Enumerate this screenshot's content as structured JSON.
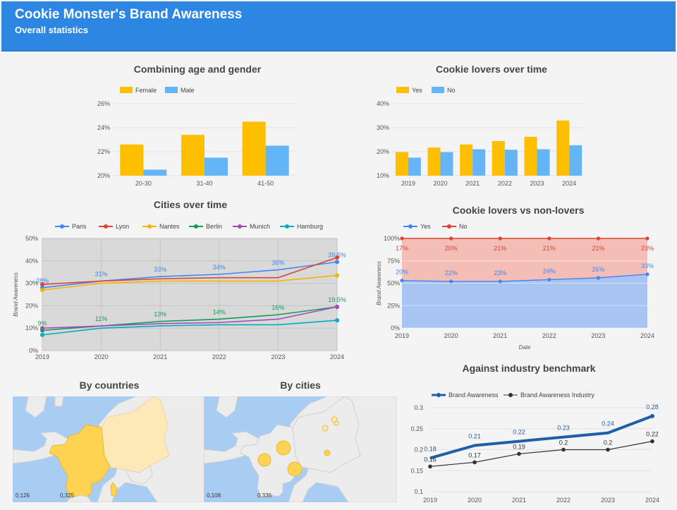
{
  "header": {
    "title": "Cookie Monster's Brand Awareness",
    "subtitle": "Overall statistics"
  },
  "panels": {
    "age_gender": "Combining age and gender",
    "lovers_time": "Cookie lovers over time",
    "cities_time": "Cities over time",
    "lovers_vs": "Cookie lovers vs non-lovers",
    "benchmark": "Against industry benchmark",
    "by_countries": "By countries",
    "by_cities": "By cities"
  },
  "maps": {
    "countries_min": "0,126",
    "countries_max": "0,325",
    "cities_min": "0,108",
    "cities_max": "0,336"
  },
  "colors": {
    "yellow": "#fdbf00",
    "lightblue": "#64b5f6",
    "paris": "#4285f4",
    "lyon": "#db4437",
    "nantes": "#f4b400",
    "berlin": "#0f9d58",
    "munich": "#ab47bc",
    "hamburg": "#00acc1",
    "benchmark": "#1f5fa8",
    "industry": "#333333"
  },
  "chart_data": [
    {
      "id": "age_gender",
      "type": "bar",
      "categories": [
        "20-30",
        "31-40",
        "41-50"
      ],
      "series": [
        {
          "name": "Female",
          "values": [
            22.6,
            23.4,
            24.5
          ]
        },
        {
          "name": "Male",
          "values": [
            20.5,
            21.5,
            22.5
          ]
        }
      ],
      "ylim": [
        20,
        26
      ],
      "yticks": [
        "20%",
        "22%",
        "24%",
        "26%"
      ],
      "ytick_values": [
        20,
        22,
        24,
        26
      ],
      "legend": "top-left"
    },
    {
      "id": "lovers_time",
      "type": "bar",
      "categories": [
        "2019",
        "2020",
        "2021",
        "2022",
        "2023",
        "2024"
      ],
      "series": [
        {
          "name": "Yes",
          "values": [
            19.8,
            21.7,
            23,
            24.4,
            26.2,
            33
          ]
        },
        {
          "name": "No",
          "values": [
            17.5,
            19.8,
            21,
            20.8,
            21,
            22.7
          ]
        }
      ],
      "ylim": [
        10,
        40
      ],
      "yticks": [
        "10%",
        "20%",
        "30%",
        "40%"
      ],
      "ytick_values": [
        10,
        20,
        30,
        40
      ],
      "legend": "top-left"
    },
    {
      "id": "cities_time",
      "type": "line",
      "x": [
        "2019",
        "2020",
        "2021",
        "2022",
        "2023",
        "2024"
      ],
      "series": [
        {
          "name": "Paris",
          "values": [
            28,
            31,
            33,
            34,
            36,
            39.5
          ],
          "labels": [
            "28%",
            "31%",
            "33%",
            "34%",
            "36%",
            "39.5%"
          ]
        },
        {
          "name": "Lyon",
          "values": [
            29.5,
            31,
            32,
            32.5,
            32.5,
            41.5
          ],
          "labels": []
        },
        {
          "name": "Nantes",
          "values": [
            27,
            30,
            31,
            31,
            31,
            33.5
          ],
          "labels": []
        },
        {
          "name": "Berlin",
          "values": [
            9,
            11,
            13,
            14,
            16,
            19.5
          ],
          "labels": [
            "9%",
            "11%",
            "13%",
            "14%",
            "16%",
            "19.5%"
          ]
        },
        {
          "name": "Munich",
          "values": [
            10,
            11,
            12,
            12.5,
            14,
            19.5
          ],
          "labels": []
        },
        {
          "name": "Hamburg",
          "values": [
            7,
            10,
            11,
            11.5,
            11.5,
            13.5
          ],
          "labels": []
        }
      ],
      "ylabel": "Brand Awareness",
      "ylim": [
        0,
        50
      ],
      "yticks": [
        "0%",
        "10%",
        "20%",
        "30%",
        "40%",
        "50%"
      ],
      "ytick_values": [
        0,
        10,
        20,
        30,
        40,
        50
      ],
      "legend": "top",
      "grid": true
    },
    {
      "id": "lovers_vs",
      "type": "area",
      "x": [
        "2019",
        "2020",
        "2021",
        "2022",
        "2023",
        "2024"
      ],
      "series": [
        {
          "name": "Yes",
          "values": [
            53,
            52,
            52,
            54,
            56,
            60
          ],
          "labels": [
            "20%",
            "22%",
            "23%",
            "24%",
            "26%",
            "33%"
          ]
        },
        {
          "name": "No",
          "values": [
            100,
            100,
            100,
            100,
            100,
            100
          ],
          "labels": [
            "17%",
            "20%",
            "21%",
            "21%",
            "21%",
            "23%"
          ]
        }
      ],
      "stacked_percent": true,
      "xlabel": "Date",
      "ylabel": "Brand Awareness",
      "ylim": [
        0,
        100
      ],
      "yticks": [
        "0%",
        "25%",
        "50%",
        "75%",
        "100%"
      ],
      "ytick_values": [
        0,
        25,
        50,
        75,
        100
      ],
      "legend": "top-left"
    },
    {
      "id": "benchmark",
      "type": "line",
      "x": [
        "2019",
        "2020",
        "2021",
        "2022",
        "2023",
        "2024"
      ],
      "series": [
        {
          "name": "Brand Awareness",
          "values": [
            0.18,
            0.21,
            0.22,
            0.23,
            0.24,
            0.28
          ],
          "labels": [
            "0.18",
            "0.21",
            "0.22",
            "0.23",
            "0.24",
            "0.28"
          ]
        },
        {
          "name": "Brand Awareness Industry",
          "values": [
            0.16,
            0.17,
            0.19,
            0.2,
            0.2,
            0.22
          ],
          "labels": [
            "0.16",
            "0.17",
            "0.19",
            "0.2",
            "0.2",
            "0.22"
          ]
        }
      ],
      "ylim": [
        0.1,
        0.3
      ],
      "yticks": [
        "0.1",
        "0.15",
        "0.2",
        "0.25",
        "0.3"
      ],
      "ytick_values": [
        0.1,
        0.15,
        0.2,
        0.25,
        0.3
      ],
      "legend": "top-left"
    }
  ]
}
